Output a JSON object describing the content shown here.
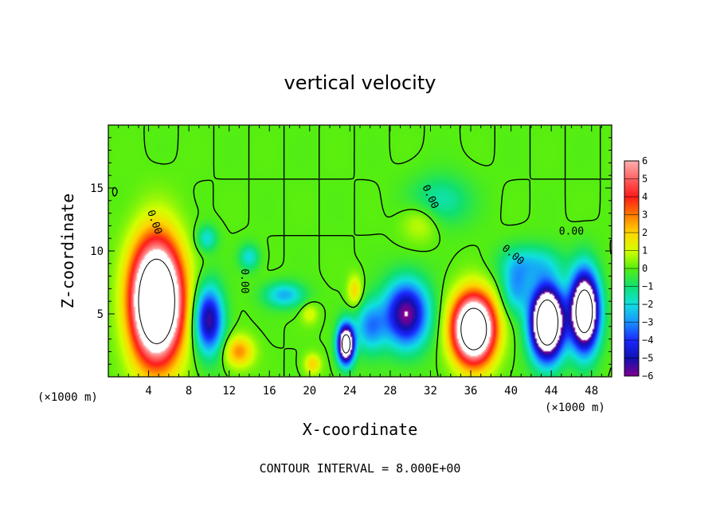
{
  "chart_data": {
    "type": "heatmap",
    "title": "vertical velocity",
    "xlabel": "X-coordinate",
    "ylabel": "Z-coordinate",
    "x_unit_left": "(×1000 m)",
    "x_unit_right": "(×1000 m)",
    "xlim": [
      0,
      50
    ],
    "ylim": [
      0,
      20
    ],
    "x_ticks": [
      4,
      8,
      12,
      16,
      20,
      24,
      28,
      32,
      36,
      40,
      44,
      48
    ],
    "y_ticks": [
      5,
      10,
      15
    ],
    "colorbar": {
      "min": -6,
      "max": 6,
      "labels": [
        "6",
        "5",
        "4",
        "3",
        "2",
        "1",
        "0",
        "−1",
        "−2",
        "−3",
        "−4",
        "−5",
        "−6"
      ],
      "colors": [
        "#ffb0b0",
        "#ff6060",
        "#ff1a1a",
        "#ff7a00",
        "#ffd500",
        "#d4ff00",
        "#55ee10",
        "#10e070",
        "#10e0e0",
        "#1a90ff",
        "#1a28ff",
        "#1010b0",
        "#800090"
      ]
    },
    "contour_interval_text": "CONTOUR INTERVAL = 8.000E+00",
    "contour_labels": [
      "0.00",
      "0.00",
      "0.00",
      "0.00",
      "0.00"
    ],
    "features": [
      {
        "kind": "updraft",
        "x": 4.8,
        "z": 6.0,
        "sx": 2.4,
        "sz": 4.5,
        "w": 14
      },
      {
        "kind": "updraft",
        "x": 36.3,
        "z": 3.8,
        "sx": 2.0,
        "sz": 2.6,
        "w": 12
      },
      {
        "kind": "updraft",
        "x": 31.0,
        "z": 12.3,
        "sx": 1.8,
        "sz": 1.5,
        "w": 1.2
      },
      {
        "kind": "updraft",
        "x": 13.0,
        "z": 2.0,
        "sx": 1.4,
        "sz": 1.2,
        "w": 2.8
      },
      {
        "kind": "updraft",
        "x": 20.3,
        "z": 1.0,
        "sx": 0.8,
        "sz": 0.8,
        "w": 2.0
      },
      {
        "kind": "updraft",
        "x": 24.5,
        "z": 6.8,
        "sx": 0.7,
        "sz": 1.2,
        "w": 2.0
      },
      {
        "kind": "updraft",
        "x": 20.0,
        "z": 5.0,
        "sx": 0.8,
        "sz": 0.8,
        "w": 1.2
      },
      {
        "kind": "downdraft",
        "x": 10.0,
        "z": 4.5,
        "sx": 1.4,
        "sz": 2.6,
        "w": -5.5
      },
      {
        "kind": "downdraft",
        "x": 29.6,
        "z": 5.0,
        "sx": 2.2,
        "sz": 2.6,
        "w": -6.0
      },
      {
        "kind": "downdraft",
        "x": 23.6,
        "z": 2.6,
        "sx": 0.8,
        "sz": 1.5,
        "w": -10
      },
      {
        "kind": "downdraft",
        "x": 43.6,
        "z": 4.3,
        "sx": 1.6,
        "sz": 2.8,
        "w": -12
      },
      {
        "kind": "downdraft",
        "x": 47.3,
        "z": 5.2,
        "sx": 1.4,
        "sz": 3.0,
        "w": -11
      },
      {
        "kind": "downdraft",
        "x": 17.5,
        "z": 6.5,
        "sx": 2.0,
        "sz": 1.0,
        "w": -2.6
      },
      {
        "kind": "downdraft",
        "x": 14.0,
        "z": 9.5,
        "sx": 1.0,
        "sz": 1.0,
        "w": -2.0
      },
      {
        "kind": "downdraft",
        "x": 33.0,
        "z": 14.0,
        "sx": 3.0,
        "sz": 2.0,
        "w": -1.6
      },
      {
        "kind": "downdraft",
        "x": 9.8,
        "z": 11.0,
        "sx": 1.0,
        "sz": 1.0,
        "w": -2.0
      },
      {
        "kind": "downdraft",
        "x": 26.0,
        "z": 4.0,
        "sx": 1.5,
        "sz": 2.0,
        "w": -3.0
      },
      {
        "kind": "downdraft",
        "x": 40.5,
        "z": 7.0,
        "sx": 1.4,
        "sz": 2.0,
        "w": -2.5
      },
      {
        "kind": "downdraft",
        "x": 42.0,
        "z": 9.0,
        "sx": 3.0,
        "sz": 1.5,
        "w": -2.0
      }
    ]
  }
}
